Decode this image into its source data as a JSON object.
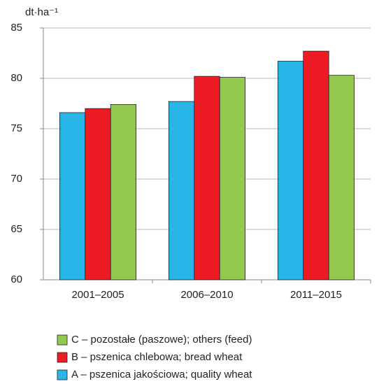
{
  "chart_data": {
    "type": "bar",
    "y_label": "dt·ha⁻¹",
    "categories": [
      "2001–2005",
      "2006–2010",
      "2011–2015"
    ],
    "series": [
      {
        "name": "A – pszenica jakościowa; quality wheat",
        "color": "#29b5e8",
        "values": [
          76.6,
          77.7,
          81.7
        ]
      },
      {
        "name": "B – pszenica chlebowa; bread wheat",
        "color": "#ed1c24",
        "values": [
          77.0,
          80.2,
          82.7
        ]
      },
      {
        "name": "C – pozostałe (paszowe); others (feed)",
        "color": "#92c94e",
        "values": [
          77.4,
          80.1,
          80.3
        ]
      }
    ],
    "ylim": [
      60,
      85
    ],
    "yticks": [
      60,
      65,
      70,
      75,
      80,
      85
    ],
    "grid": true,
    "legend_order": "reversed"
  }
}
